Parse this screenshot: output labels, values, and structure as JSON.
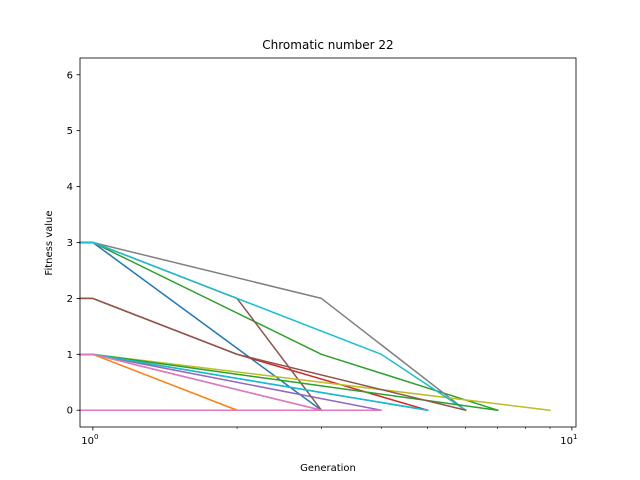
{
  "chart_data": {
    "type": "line",
    "title": "Chromatic number 22",
    "xlabel": "Generation",
    "ylabel": "Fitness value",
    "xscale": "log",
    "xlim": [
      0.94,
      10.2
    ],
    "ylim": [
      -0.3,
      6.3
    ],
    "grid": false,
    "x_ticks": [
      {
        "value": 1,
        "label": "10^0"
      },
      {
        "value": 10,
        "label": "10^1"
      }
    ],
    "y_ticks": [
      0,
      1,
      2,
      3,
      4,
      5,
      6
    ],
    "series": [
      {
        "color": "#1f77b4",
        "x": [
          0.94,
          1,
          3
        ],
        "y": [
          3,
          3,
          0
        ]
      },
      {
        "color": "#ff7f0e",
        "x": [
          0.94,
          1,
          2
        ],
        "y": [
          1,
          1,
          0
        ]
      },
      {
        "color": "#2ca02c",
        "x": [
          0.94,
          1,
          3,
          7
        ],
        "y": [
          3,
          3,
          1,
          0
        ]
      },
      {
        "color": "#d62728",
        "x": [
          0.94,
          1,
          2,
          5
        ],
        "y": [
          2,
          2,
          1,
          0
        ]
      },
      {
        "color": "#9467bd",
        "x": [
          0.94,
          1,
          4
        ],
        "y": [
          1,
          1,
          0
        ]
      },
      {
        "color": "#8c564b",
        "x": [
          0.94,
          1,
          2,
          3
        ],
        "y": [
          3,
          3,
          2,
          0
        ]
      },
      {
        "color": "#e377c2",
        "x": [
          0.94,
          1,
          3,
          4
        ],
        "y": [
          0,
          0,
          0,
          0
        ]
      },
      {
        "color": "#7f7f7f",
        "x": [
          0.94,
          1,
          3,
          6
        ],
        "y": [
          3,
          3,
          2,
          0
        ]
      },
      {
        "color": "#bcbd22",
        "x": [
          0.94,
          1,
          9
        ],
        "y": [
          1,
          1,
          0
        ]
      },
      {
        "color": "#17becf",
        "x": [
          0.94,
          1,
          2,
          4,
          6
        ],
        "y": [
          3,
          3,
          2,
          1,
          0
        ]
      },
      {
        "color": "#1f77b4",
        "x": [
          0.94,
          1,
          5
        ],
        "y": [
          1,
          1,
          0
        ]
      },
      {
        "color": "#2ca02c",
        "x": [
          0.94,
          1,
          7
        ],
        "y": [
          1,
          1,
          0
        ]
      },
      {
        "color": "#8c564b",
        "x": [
          0.94,
          1,
          2,
          6
        ],
        "y": [
          2,
          2,
          1,
          0
        ]
      },
      {
        "color": "#7f7f7f",
        "x": [
          0.94,
          1,
          3
        ],
        "y": [
          1,
          1,
          0
        ]
      },
      {
        "color": "#17becf",
        "x": [
          0.94,
          1,
          5
        ],
        "y": [
          1,
          1,
          0
        ]
      },
      {
        "color": "#e377c2",
        "x": [
          0.94,
          1,
          3
        ],
        "y": [
          1,
          1,
          0
        ]
      }
    ]
  }
}
